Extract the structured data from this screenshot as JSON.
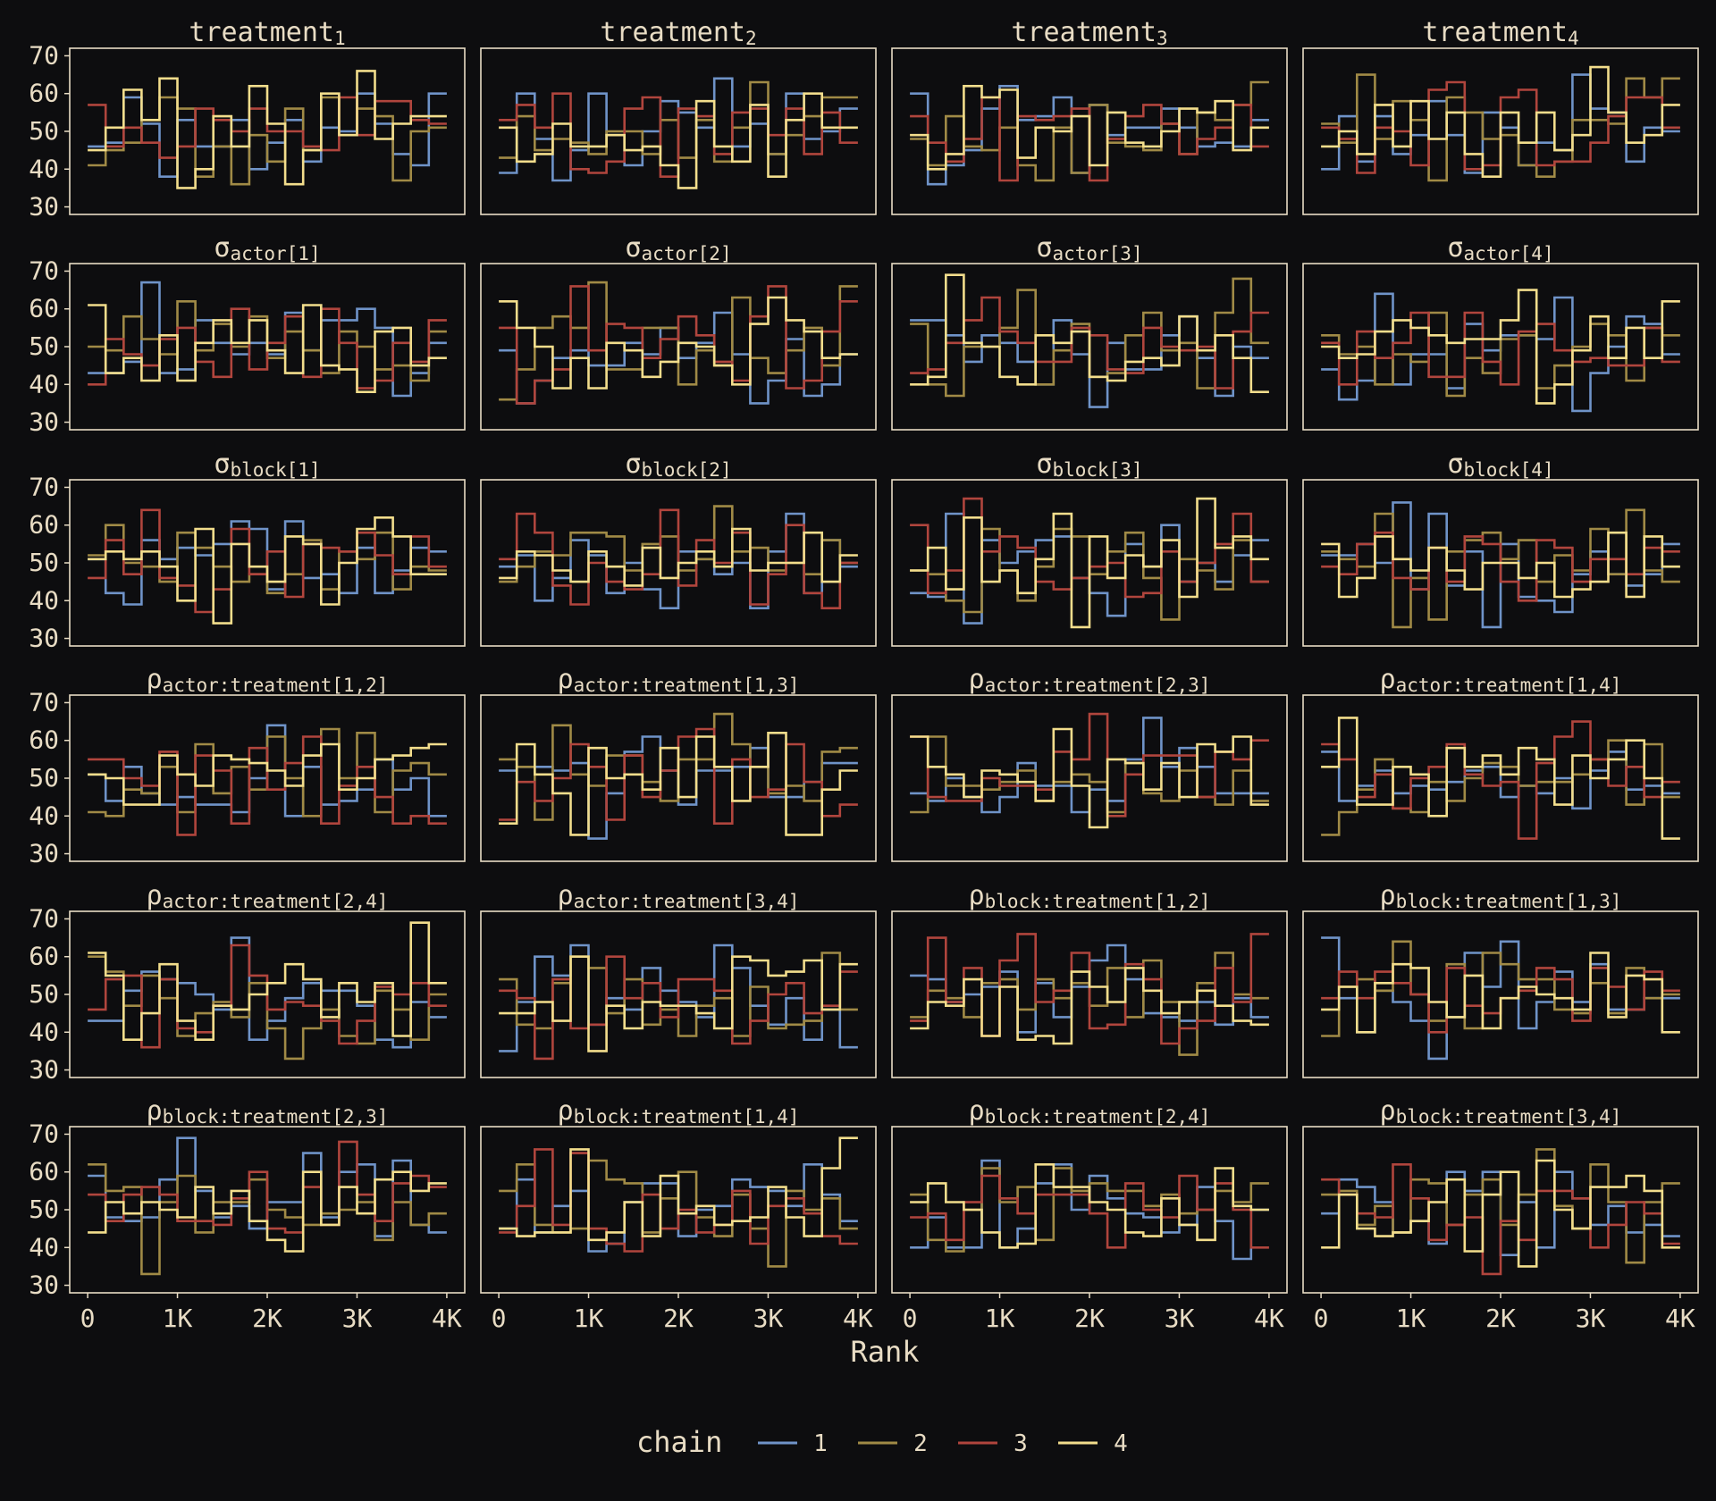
{
  "chart_data": {
    "type": "line",
    "xlabel": "Rank",
    "x_ticks": [
      0,
      1000,
      2000,
      3000,
      4000
    ],
    "x_tick_labels": [
      "0",
      "1K",
      "2K",
      "3K",
      "4K"
    ],
    "y_ticks": [
      30,
      40,
      50,
      60,
      70
    ],
    "y_tick_labels": [
      "30",
      "40",
      "50",
      "60",
      "70"
    ],
    "ylim": [
      28,
      72
    ],
    "xlim": [
      -200,
      4200
    ],
    "bins": 20,
    "bin_width": 200,
    "grid": false,
    "legend": {
      "title": "chain",
      "position": "bottom"
    },
    "series_colors": [
      "#6f93c8",
      "#a08a46",
      "#b0453d",
      "#f2dd8c"
    ],
    "series_names": [
      "1",
      "2",
      "3",
      "4"
    ],
    "panels": [
      {
        "title": [
          [
            "treatment",
            ""
          ],
          [
            "1",
            "sub"
          ]
        ]
      },
      {
        "title": [
          [
            "treatment",
            ""
          ],
          [
            "2",
            "sub"
          ]
        ]
      },
      {
        "title": [
          [
            "treatment",
            ""
          ],
          [
            "3",
            "sub"
          ]
        ]
      },
      {
        "title": [
          [
            "treatment",
            ""
          ],
          [
            "4",
            "sub"
          ]
        ]
      },
      {
        "title": [
          [
            "σ",
            ""
          ],
          [
            "actor[1]",
            "sub"
          ]
        ]
      },
      {
        "title": [
          [
            "σ",
            ""
          ],
          [
            "actor[2]",
            "sub"
          ]
        ]
      },
      {
        "title": [
          [
            "σ",
            ""
          ],
          [
            "actor[3]",
            "sub"
          ]
        ]
      },
      {
        "title": [
          [
            "σ",
            ""
          ],
          [
            "actor[4]",
            "sub"
          ]
        ]
      },
      {
        "title": [
          [
            "σ",
            ""
          ],
          [
            "block[1]",
            "sub"
          ]
        ]
      },
      {
        "title": [
          [
            "σ",
            ""
          ],
          [
            "block[2]",
            "sub"
          ]
        ]
      },
      {
        "title": [
          [
            "σ",
            ""
          ],
          [
            "block[3]",
            "sub"
          ]
        ]
      },
      {
        "title": [
          [
            "σ",
            ""
          ],
          [
            "block[4]",
            "sub"
          ]
        ]
      },
      {
        "title": [
          [
            "ρ",
            ""
          ],
          [
            "actor:treatment[1,2]",
            "sub"
          ]
        ]
      },
      {
        "title": [
          [
            "ρ",
            ""
          ],
          [
            "actor:treatment[1,3]",
            "sub"
          ]
        ]
      },
      {
        "title": [
          [
            "ρ",
            ""
          ],
          [
            "actor:treatment[2,3]",
            "sub"
          ]
        ]
      },
      {
        "title": [
          [
            "ρ",
            ""
          ],
          [
            "actor:treatment[1,4]",
            "sub"
          ]
        ]
      },
      {
        "title": [
          [
            "ρ",
            ""
          ],
          [
            "actor:treatment[2,4]",
            "sub"
          ]
        ]
      },
      {
        "title": [
          [
            "ρ",
            ""
          ],
          [
            "actor:treatment[3,4]",
            "sub"
          ]
        ]
      },
      {
        "title": [
          [
            "ρ",
            ""
          ],
          [
            "block:treatment[1,2]",
            "sub"
          ]
        ]
      },
      {
        "title": [
          [
            "ρ",
            ""
          ],
          [
            "block:treatment[1,3]",
            "sub"
          ]
        ]
      },
      {
        "title": [
          [
            "ρ",
            ""
          ],
          [
            "block:treatment[2,3]",
            "sub"
          ]
        ]
      },
      {
        "title": [
          [
            "ρ",
            ""
          ],
          [
            "block:treatment[1,4]",
            "sub"
          ]
        ]
      },
      {
        "title": [
          [
            "ρ",
            ""
          ],
          [
            "block:treatment[2,4]",
            "sub"
          ]
        ]
      },
      {
        "title": [
          [
            "ρ",
            ""
          ],
          [
            "block:treatment[3,4]",
            "sub"
          ]
        ]
      }
    ]
  }
}
